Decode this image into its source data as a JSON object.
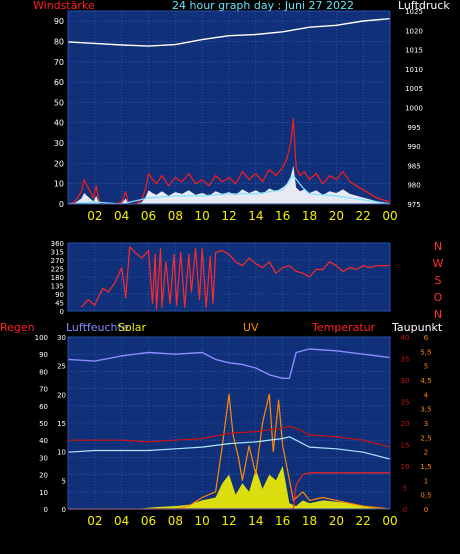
{
  "header": {
    "left_label": "Windstärke",
    "title": "24 hour graph day : Juni 27 2022",
    "right_label": "Luftdruck"
  },
  "colors": {
    "background": "#000000",
    "plot_bg": "#10307a",
    "grid": "#3a6cd6",
    "wind": "#ff1a1a",
    "gust_fill": "#ffffff",
    "wind_avg": "#7fe0ff",
    "pressure": "#ffffff",
    "direction": "#ff2a2a",
    "humidity": "#8a8cff",
    "solar": "#f2f200",
    "uv": "#ff8a00",
    "temperature": "#cc1010",
    "dewpoint": "#aee8ff",
    "rain": "#ff2020",
    "time_labels": "#f5f000",
    "left_axis": "#ffffff",
    "pressure_axis": "#ffffff",
    "direction_axis": "#ff3030"
  },
  "bottom_panel_labels": {
    "rain": "Regen",
    "humidity": "Luftfeuchte",
    "solar": "Solar",
    "uv": "UV",
    "temperature": "Temperatur",
    "dewpoint": "Taupunkt"
  },
  "chart_data": [
    {
      "type": "line",
      "panel": "wind-pressure",
      "x_label_hours": [
        "02",
        "04",
        "06",
        "08",
        "10",
        "12",
        "14",
        "16",
        "18",
        "20",
        "22",
        "00"
      ],
      "y_left_ticks": [
        0,
        10,
        20,
        30,
        40,
        50,
        60,
        70,
        80,
        90
      ],
      "y_left_range": [
        0,
        95
      ],
      "y_right_ticks": [
        975,
        980,
        985,
        990,
        995,
        1000,
        1005,
        1010,
        1015,
        1020,
        1025
      ],
      "y_right_range": [
        975,
        1025
      ],
      "x_range": [
        0,
        24
      ],
      "series": [
        {
          "name": "Windstärke",
          "axis": "left",
          "x": [
            0.0,
            0.5,
            1.0,
            1.2,
            1.5,
            1.9,
            2.1,
            2.3,
            2.5,
            3.0,
            3.5,
            4.0,
            4.3,
            4.5,
            5.0,
            5.5,
            5.8,
            6.0,
            6.3,
            6.6,
            7.0,
            7.5,
            8.0,
            8.5,
            9.0,
            9.5,
            10.0,
            10.5,
            11.0,
            11.5,
            12.0,
            12.5,
            13.0,
            13.5,
            14.0,
            14.5,
            15.0,
            15.5,
            16.0,
            16.3,
            16.6,
            16.8,
            17.0,
            17.3,
            17.6,
            18.0,
            18.5,
            19.0,
            19.5,
            20.0,
            20.5,
            21.0,
            21.5,
            22.0,
            22.5,
            23.0,
            23.5,
            24.0
          ],
          "values": [
            0,
            1,
            6,
            12,
            8,
            3,
            9,
            2,
            0,
            0,
            0,
            1,
            6,
            0,
            0,
            2,
            8,
            15,
            12,
            10,
            14,
            9,
            13,
            11,
            15,
            10,
            12,
            9,
            14,
            11,
            13,
            10,
            16,
            12,
            15,
            11,
            17,
            14,
            18,
            22,
            30,
            42,
            18,
            14,
            16,
            12,
            15,
            10,
            14,
            12,
            16,
            11,
            9,
            7,
            5,
            3,
            2,
            1
          ]
        },
        {
          "name": "wind average",
          "axis": "left",
          "x": [
            0,
            2,
            4,
            6,
            8,
            10,
            12,
            14,
            16,
            16.8,
            17.5,
            18,
            20,
            22,
            24
          ],
          "values": [
            0,
            1,
            0,
            3,
            4,
            4,
            5,
            5,
            7,
            14,
            8,
            5,
            4,
            2,
            0
          ]
        },
        {
          "name": "Luftdruck",
          "axis": "right",
          "x": [
            0,
            2,
            4,
            6,
            8,
            10,
            12,
            14,
            16,
            18,
            20,
            22,
            24
          ],
          "values": [
            1017.0,
            1016.6,
            1016.2,
            1015.9,
            1016.3,
            1017.6,
            1018.6,
            1018.9,
            1019.6,
            1020.8,
            1021.3,
            1022.4,
            1023.0
          ]
        }
      ]
    },
    {
      "type": "line",
      "panel": "wind-direction",
      "x_label_hours": [],
      "y_left_ticks": [
        0,
        45,
        90,
        135,
        180,
        225,
        270,
        315,
        360
      ],
      "y_left_range": [
        0,
        360
      ],
      "y_right_ticks": [
        "N",
        "W",
        "S",
        "O",
        "N"
      ],
      "x_range": [
        0,
        24
      ],
      "series": [
        {
          "name": "direction",
          "x": [
            1.0,
            1.5,
            2.0,
            2.3,
            2.6,
            3.0,
            3.5,
            4.0,
            4.3,
            4.6,
            5.0,
            5.5,
            6.0,
            6.3,
            6.5,
            6.6,
            6.9,
            7.0,
            7.3,
            7.6,
            7.9,
            8.1,
            8.4,
            8.7,
            9.0,
            9.2,
            9.5,
            9.8,
            10.0,
            10.3,
            10.6,
            10.8,
            11.0,
            11.5,
            12.0,
            12.5,
            13.0,
            13.5,
            14.0,
            14.5,
            15.0,
            15.5,
            16.0,
            16.5,
            17.0,
            17.5,
            18.0,
            18.5,
            19.0,
            19.5,
            20.0,
            20.5,
            21.0,
            21.5,
            22.0,
            22.5,
            23.0,
            24.0
          ],
          "values": [
            20,
            60,
            30,
            80,
            120,
            100,
            150,
            230,
            70,
            340,
            310,
            280,
            320,
            40,
            300,
            10,
            330,
            20,
            260,
            40,
            300,
            30,
            310,
            20,
            300,
            100,
            330,
            60,
            330,
            20,
            290,
            40,
            310,
            320,
            300,
            260,
            240,
            280,
            250,
            230,
            260,
            200,
            230,
            240,
            210,
            200,
            180,
            220,
            220,
            260,
            240,
            210,
            230,
            220,
            240,
            230,
            240,
            240
          ]
        }
      ]
    },
    {
      "type": "line",
      "panel": "climate",
      "x_label_hours": [
        "02",
        "04",
        "06",
        "08",
        "10",
        "12",
        "14",
        "16",
        "18",
        "20",
        "22",
        "00"
      ],
      "y_rain_ticks": [
        0,
        10,
        20,
        30,
        40,
        50,
        60,
        70,
        80,
        90,
        100
      ],
      "y_rain_range": [
        0,
        100
      ],
      "y_humidity_ticks": [
        0,
        5,
        10,
        15,
        20,
        25,
        30
      ],
      "y_humidity_range": [
        0,
        30
      ],
      "y_uv_ticks": [
        0,
        0.5,
        1,
        1.5,
        2,
        2.5,
        3,
        3.5,
        4,
        4.5,
        5,
        5.5,
        6
      ],
      "y_uv_ticks_labels": [
        "0",
        "0,5",
        "1",
        "1,5",
        "2",
        "2,5",
        "3",
        "3,5",
        "4",
        "4,5",
        "5",
        "5,5",
        "6"
      ],
      "y_uv_range": [
        0,
        6
      ],
      "y_temp_ticks": [
        0,
        5,
        10,
        15,
        20,
        25,
        30,
        35,
        40
      ],
      "y_temp_range": [
        0,
        40
      ],
      "x_range": [
        0,
        24
      ],
      "series": [
        {
          "name": "Luftfeuchte",
          "scale": "rain",
          "x": [
            0,
            2,
            4,
            6,
            8,
            10,
            11,
            12,
            13,
            14,
            15,
            16,
            16.5,
            17,
            18,
            20,
            22,
            24
          ],
          "values": [
            87,
            86,
            89,
            91,
            90,
            91,
            87,
            85,
            84,
            82,
            78,
            76,
            76,
            91,
            93,
            92,
            90,
            88
          ]
        },
        {
          "name": "Temperatur",
          "scale": "rain",
          "x": [
            0,
            2,
            4,
            6,
            8,
            10,
            12,
            14,
            16,
            16.5,
            17,
            18,
            20,
            22,
            24
          ],
          "values": [
            40,
            40,
            40,
            39,
            40,
            41,
            44,
            45,
            47,
            48,
            47,
            43,
            42,
            40,
            36
          ]
        },
        {
          "name": "Taupunkt",
          "scale": "rain",
          "x": [
            0,
            2,
            4,
            6,
            8,
            10,
            12,
            14,
            16,
            16.5,
            17,
            18,
            20,
            22,
            24
          ],
          "values": [
            33,
            34,
            34,
            34,
            35,
            36,
            38,
            39,
            41,
            42,
            40,
            36,
            35,
            33,
            29
          ]
        },
        {
          "name": "Regen",
          "scale": "rain",
          "x": [
            0,
            16.8,
            17.0,
            17.5,
            18,
            20,
            22,
            24
          ],
          "values": [
            0,
            0,
            14,
            20,
            21,
            21,
            21,
            21
          ]
        },
        {
          "name": "Solar",
          "scale": "uv",
          "x": [
            0,
            5,
            6,
            7,
            8,
            9,
            10,
            11,
            11.5,
            12,
            12.5,
            13,
            13.5,
            14,
            14.5,
            15,
            15.5,
            16,
            16.5,
            17,
            17.5,
            18,
            19,
            20,
            21,
            22,
            23,
            24
          ],
          "values": [
            0,
            0,
            0.05,
            0.08,
            0.1,
            0.15,
            0.3,
            0.4,
            0.9,
            1.2,
            0.5,
            0.9,
            0.6,
            1.4,
            0.7,
            1.2,
            1.0,
            1.5,
            0.2,
            0.1,
            0.3,
            0.2,
            0.3,
            0.25,
            0.2,
            0.1,
            0.02,
            0
          ]
        },
        {
          "name": "UV",
          "scale": "uv",
          "x": [
            0,
            8,
            9,
            10,
            11,
            11.5,
            12,
            12.3,
            12.7,
            13,
            13.5,
            14,
            14.5,
            15,
            15.3,
            15.7,
            16,
            16.3,
            16.8,
            17.5,
            18,
            19,
            20,
            21,
            22,
            24
          ],
          "values": [
            0,
            0,
            0.1,
            0.4,
            0.6,
            2.2,
            4.0,
            2.6,
            1.8,
            1.0,
            2.2,
            1.2,
            3.0,
            4.0,
            2.0,
            3.8,
            2.2,
            1.5,
            0.3,
            0.6,
            0.3,
            0.4,
            0.3,
            0.2,
            0.1,
            0
          ]
        }
      ]
    }
  ]
}
